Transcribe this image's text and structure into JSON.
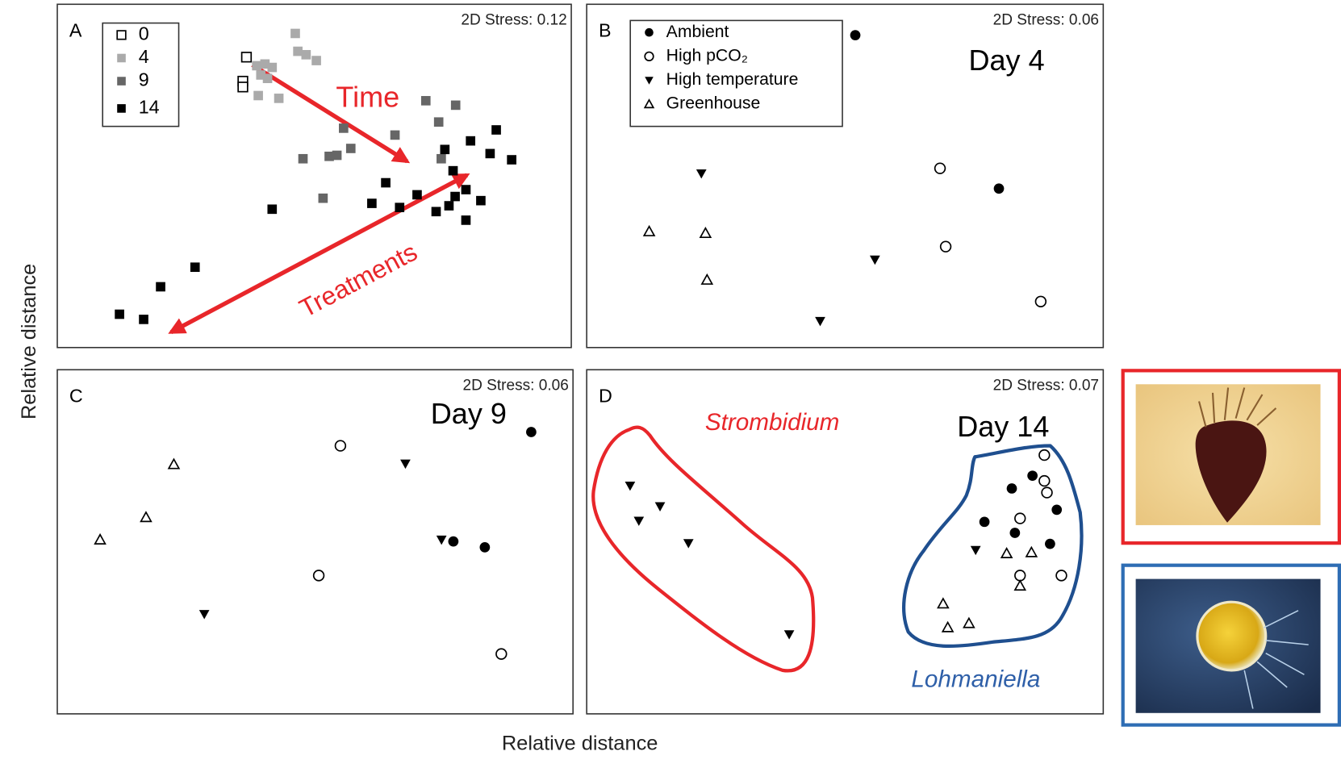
{
  "chart_data": [
    {
      "type": "scatter",
      "panel_label": "A",
      "stress": "2D Stress: 0.12",
      "legend": "upper left",
      "annotations": [
        "Time",
        "Treatments"
      ],
      "series": [
        {
          "name": "0",
          "marker": "square-open",
          "color": "#000000",
          "x": [
            36.8,
            36.1,
            36.1
          ],
          "y": [
            84.6,
            77.6,
            75.9
          ]
        },
        {
          "name": "4",
          "marker": "square",
          "color": "#aaaaaa",
          "x": [
            46.3,
            46.8,
            48.4,
            50.4,
            38.8,
            40.4,
            41.8,
            39.6,
            40.9,
            39.1,
            43.1
          ],
          "y": [
            91.5,
            86.3,
            85.3,
            83.6,
            82.1,
            82.6,
            81.6,
            79.4,
            78.4,
            73.4,
            72.6
          ]
        },
        {
          "name": "9",
          "marker": "square",
          "color": "#666666",
          "x": [
            55.7,
            65.7,
            47.8,
            52.9,
            54.4,
            57.1,
            74.7,
            71.7,
            77.5,
            74.2,
            51.7
          ],
          "y": [
            63.9,
            61.9,
            55,
            55.7,
            56,
            58,
            55,
            71.9,
            70.6,
            65.7,
            43.5
          ]
        },
        {
          "name": "14",
          "marker": "square",
          "color": "#000000",
          "x": [
            41.8,
            26.8,
            20.1,
            12.1,
            16.8,
            63.9,
            61.2,
            66.6,
            70,
            73.7,
            76.2,
            79.5,
            82.4,
            77.4,
            79.5,
            77,
            75.4,
            80.4,
            85.4,
            84.2,
            88.4
          ],
          "y": [
            40.3,
            23.4,
            17.7,
            9.7,
            8.2,
            48,
            42,
            40.8,
            44.5,
            39.6,
            41.3,
            37.1,
            42.8,
            44,
            46,
            51.5,
            57.7,
            60.2,
            63.4,
            56.5,
            54.7
          ]
        }
      ]
    },
    {
      "type": "scatter",
      "panel_label": "B",
      "stress": "2D Stress: 0.06",
      "legend": "upper left",
      "annotations": [
        "Day 4"
      ],
      "series": [
        {
          "name": "Ambient",
          "marker": "circle",
          "color": "#000000",
          "x": [
            52,
            79.8
          ],
          "y": [
            91,
            46.3
          ]
        },
        {
          "name": "High pCO₂",
          "marker": "circle-open",
          "color": "#000000",
          "x": [
            68.4,
            69.5,
            87.9
          ],
          "y": [
            52.2,
            29.4,
            13.4
          ]
        },
        {
          "name": "High temperature",
          "marker": "triangle-down",
          "color": "#000000",
          "x": [
            22.2,
            55.8,
            45.2
          ],
          "y": [
            50.7,
            25.6,
            7.7
          ]
        },
        {
          "name": "Greenhouse",
          "marker": "triangle-up-open",
          "color": "#000000",
          "x": [
            12.1,
            23,
            23.3
          ],
          "y": [
            33.8,
            33.3,
            19.7
          ]
        }
      ]
    },
    {
      "type": "scatter",
      "panel_label": "C",
      "stress": "2D Stress: 0.06",
      "annotations": [
        "Day 9"
      ],
      "series": [
        {
          "marker": "circle",
          "color": "#000000",
          "x": [
            91.9,
            76.8,
            82.9
          ],
          "y": [
            81.9,
            50.1,
            48.4
          ]
        },
        {
          "marker": "circle-open",
          "color": "#000000",
          "x": [
            54.9,
            50.7,
            86.1
          ],
          "y": [
            77.9,
            40.2,
            17.4
          ]
        },
        {
          "marker": "triangle-down",
          "color": "#000000",
          "x": [
            67.5,
            74.5,
            28.5
          ],
          "y": [
            72.7,
            50.6,
            29
          ]
        },
        {
          "marker": "triangle-up-open",
          "color": "#000000",
          "x": [
            22.6,
            17.2,
            8.3
          ],
          "y": [
            72.5,
            57.1,
            50.6
          ]
        }
      ]
    },
    {
      "type": "scatter",
      "panel_label": "D",
      "stress": "2D Stress: 0.07",
      "annotations": [
        "Day 14",
        "Strombidium",
        "Lohmaniella"
      ],
      "series": [
        {
          "marker": "circle",
          "color": "#000000",
          "x": [
            86.3,
            82.3,
            91,
            77,
            82.9,
            89.7
          ],
          "y": [
            69.2,
            65.5,
            59.3,
            55.8,
            52.6,
            49.4
          ]
        },
        {
          "marker": "circle-open",
          "color": "#000000",
          "x": [
            88.6,
            88.6,
            89.1,
            83.9,
            83.9,
            91.9
          ],
          "y": [
            75.2,
            67.7,
            64.3,
            56.8,
            40.2,
            40.2
          ]
        },
        {
          "marker": "triangle-down",
          "color": "#000000",
          "x": [
            8.4,
            14.2,
            10.1,
            19.7,
            75.3,
            39.2
          ],
          "y": [
            66.3,
            60.3,
            56.1,
            49.6,
            47.6,
            23.1
          ]
        },
        {
          "marker": "triangle-up-open",
          "color": "#000000",
          "x": [
            81.3,
            86.1,
            83.9,
            69,
            69.9,
            74
          ],
          "y": [
            46.6,
            46.9,
            37.2,
            32,
            25.1,
            26.3
          ]
        }
      ]
    }
  ],
  "y_axis_label": "Relative distance",
  "x_axis_label": "Relative distance"
}
